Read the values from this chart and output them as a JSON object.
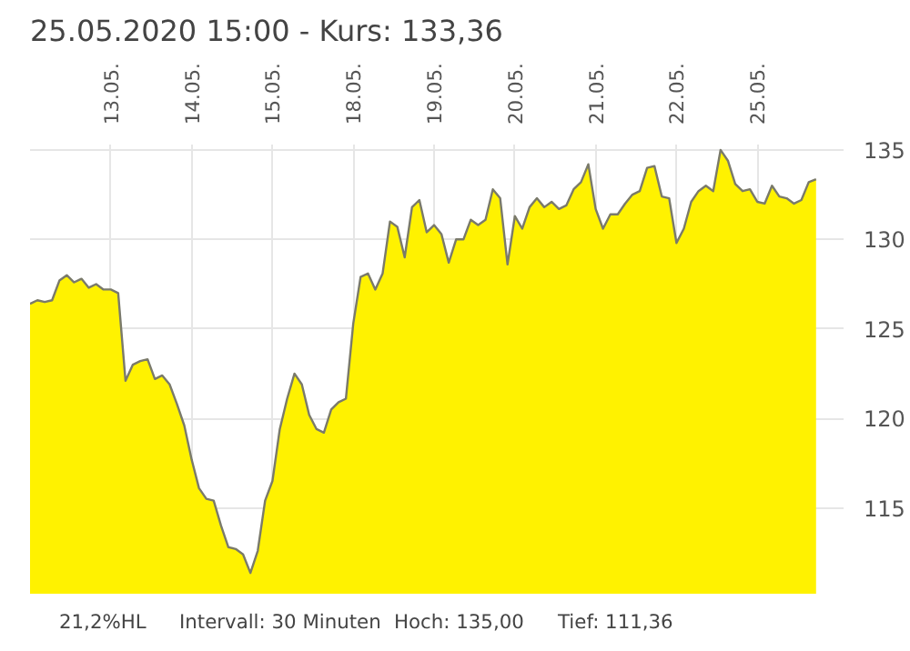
{
  "chart_data": {
    "type": "area",
    "title": "25.05.2020 15:00  -  Kurs: 133,36",
    "categories": [
      null,
      null,
      null,
      null,
      null,
      null,
      null,
      null,
      null,
      null,
      null,
      "13.05.",
      null,
      null,
      null,
      null,
      null,
      null,
      null,
      null,
      null,
      null,
      "14.05.",
      null,
      null,
      null,
      null,
      null,
      null,
      null,
      null,
      null,
      null,
      "15.05.",
      null,
      null,
      null,
      null,
      null,
      null,
      null,
      null,
      null,
      null,
      "18.05.",
      null,
      null,
      null,
      null,
      null,
      null,
      null,
      null,
      null,
      null,
      "19.05.",
      null,
      null,
      null,
      null,
      null,
      null,
      null,
      null,
      null,
      null,
      "20.05.",
      null,
      null,
      null,
      null,
      null,
      null,
      null,
      null,
      null,
      null,
      "21.05.",
      null,
      null,
      null,
      null,
      null,
      null,
      null,
      null,
      null,
      null,
      "22.05.",
      null,
      null,
      null,
      null,
      null,
      null,
      null,
      null,
      null,
      null,
      "25.05.",
      null,
      null,
      null,
      null,
      null,
      null,
      null,
      null
    ],
    "series": [
      {
        "color": "#fff200",
        "values": [
          126.4,
          126.6,
          126.5,
          126.6,
          127.7,
          128.0,
          127.6,
          127.8,
          127.3,
          127.5,
          127.2,
          127.2,
          127.0,
          122.1,
          123.0,
          123.2,
          123.3,
          122.2,
          122.4,
          121.9,
          120.8,
          119.6,
          117.7,
          116.1,
          115.5,
          115.4,
          114.0,
          112.8,
          112.7,
          112.4,
          111.36,
          112.6,
          115.4,
          116.5,
          119.4,
          121.1,
          122.5,
          121.9,
          120.2,
          119.4,
          119.2,
          120.5,
          120.9,
          121.1,
          125.3,
          127.9,
          128.1,
          127.2,
          128.1,
          131.0,
          130.7,
          129.0,
          131.8,
          132.2,
          130.4,
          130.8,
          130.3,
          128.7,
          130.0,
          130.0,
          131.1,
          130.8,
          131.1,
          132.8,
          132.3,
          128.6,
          131.3,
          130.6,
          131.8,
          132.3,
          131.8,
          132.1,
          131.7,
          131.9,
          132.8,
          133.2,
          134.2,
          131.7,
          130.6,
          131.4,
          131.4,
          132.0,
          132.5,
          132.7,
          134.0,
          134.1,
          132.4,
          132.3,
          129.8,
          130.6,
          132.1,
          132.7,
          133.0,
          132.7,
          135.0,
          134.4,
          133.1,
          132.7,
          132.8,
          132.1,
          132.0,
          133.0,
          132.4,
          132.3,
          132.0,
          132.2,
          133.2,
          133.36
        ]
      }
    ],
    "ylim": [
      110.2,
      135.3
    ],
    "yticks": [
      115,
      120,
      125,
      130,
      135
    ],
    "grid": true,
    "annotations": [
      "21,2%HL",
      "Intervall: 30 Minuten",
      "Hoch:  135,00",
      "Tief:  111,36"
    ]
  }
}
